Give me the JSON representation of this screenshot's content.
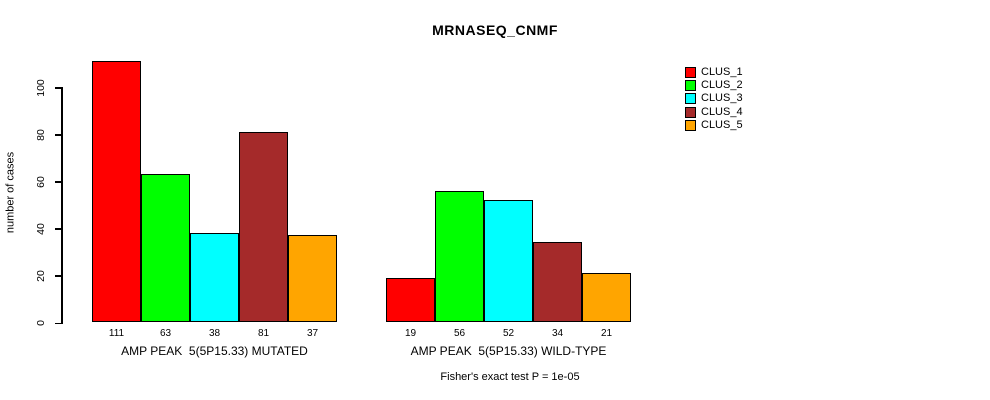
{
  "title": "MRNASEQ_CNMF",
  "footnote": "Fisher's exact test P = 1e-05",
  "chart_data": {
    "type": "bar",
    "title": "MRNASEQ_CNMF",
    "xlabel": "",
    "ylabel": "number of cases",
    "ylim": [
      0,
      111
    ],
    "yticks": [
      0,
      20,
      40,
      60,
      80,
      100
    ],
    "grid": false,
    "legend_position": "top-right",
    "series": [
      {
        "name": "CLUS_1",
        "color": "#FF0000",
        "values": [
          111,
          19
        ]
      },
      {
        "name": "CLUS_2",
        "color": "#00FF00",
        "values": [
          63,
          56
        ]
      },
      {
        "name": "CLUS_3",
        "color": "#00FFFF",
        "values": [
          38,
          52
        ]
      },
      {
        "name": "CLUS_4",
        "color": "#A52A2A",
        "values": [
          81,
          34
        ]
      },
      {
        "name": "CLUS_5",
        "color": "#FFA500",
        "values": [
          37,
          21
        ]
      }
    ],
    "groups": [
      {
        "label": "AMP PEAK  5(5P15.33) MUTATED",
        "values": [
          111,
          63,
          38,
          81,
          37
        ]
      },
      {
        "label": "AMP PEAK  5(5P15.33) WILD-TYPE",
        "values": [
          19,
          56,
          52,
          34,
          21
        ]
      }
    ],
    "annotation": "Fisher's exact test P = 1e-05"
  }
}
